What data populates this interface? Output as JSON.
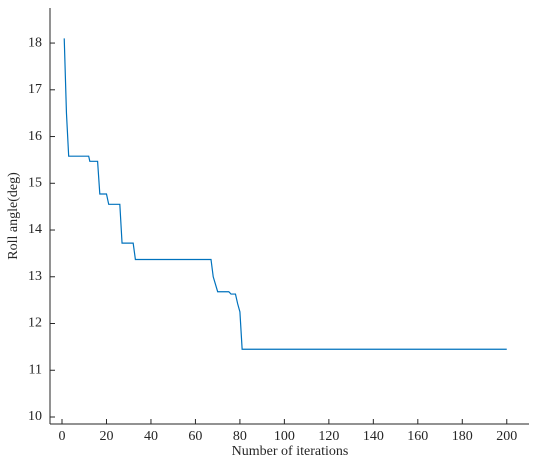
{
  "chart_data": {
    "type": "line",
    "x_label": "Number of iterations",
    "y_label": "Roll angle(deg)",
    "series": [
      {
        "color": "#0072bd",
        "x": [
          1,
          2,
          3,
          12,
          12.5,
          16,
          17,
          20,
          21,
          26,
          27,
          32,
          33,
          67,
          68,
          70,
          75,
          76,
          78,
          79,
          80,
          81,
          200
        ],
        "values": [
          18.1,
          16.5,
          15.58,
          15.58,
          15.47,
          15.47,
          14.77,
          14.77,
          14.55,
          14.55,
          13.72,
          13.72,
          13.37,
          13.37,
          13.0,
          12.68,
          12.68,
          12.63,
          12.63,
          12.42,
          12.25,
          11.45,
          11.45
        ]
      }
    ],
    "xlim": [
      -5.4,
      210
    ],
    "ylim": [
      9.85,
      18.75
    ],
    "xticks": [
      0,
      20,
      40,
      60,
      80,
      100,
      120,
      140,
      160,
      180,
      200
    ],
    "yticks": [
      10,
      11,
      12,
      13,
      14,
      15,
      16,
      17,
      18
    ]
  }
}
